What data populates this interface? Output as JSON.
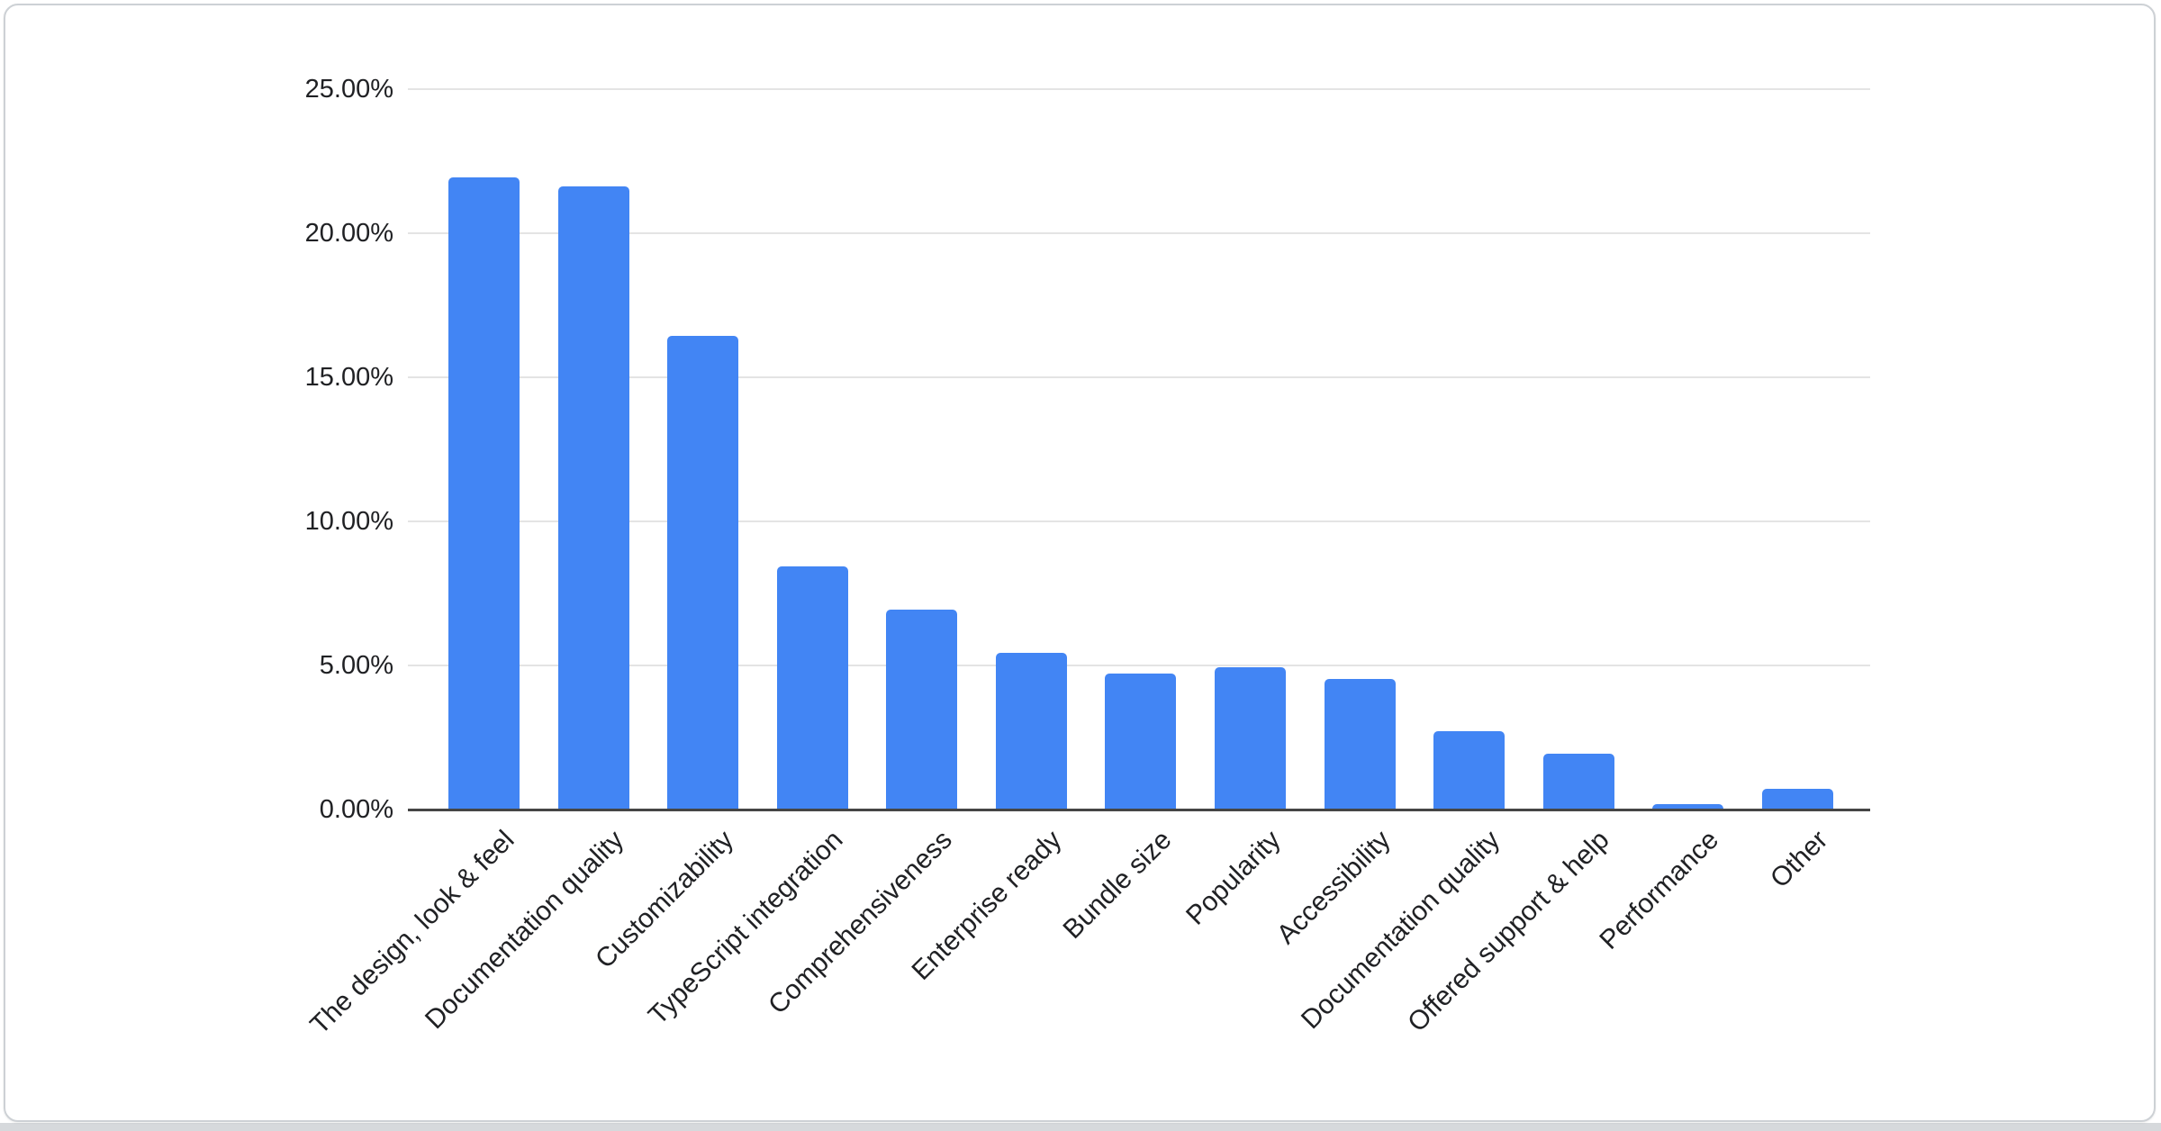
{
  "card": {
    "background": "#ffffff",
    "border_color": "#cdd1d5",
    "outside_strip_color": "#d6d9dc"
  },
  "chart_data": {
    "type": "bar",
    "title": "",
    "xlabel": "",
    "ylabel": "",
    "categories": [
      "The design, look & feel",
      "Documentation quality",
      "Customizability",
      "TypeScript integration",
      "Comprehensiveness",
      "Enterprise ready",
      "Bundle size",
      "Popularity",
      "Accessibility",
      "Documentation quality",
      "Offered support & help",
      "Performance",
      "Other"
    ],
    "values": [
      21.9,
      21.6,
      16.4,
      8.4,
      6.9,
      5.4,
      4.7,
      4.9,
      4.5,
      2.7,
      1.9,
      0.15,
      0.7
    ],
    "value_unit": "percent",
    "ylim": [
      0,
      25
    ],
    "ytick_step": 5,
    "ytick_labels": [
      "0.00%",
      "5.00%",
      "10.00%",
      "15.00%",
      "20.00%",
      "25.00%"
    ],
    "grid": true,
    "legend_position": "none",
    "bar_color": "#4285f4",
    "gridline_color": "#e4e4e4",
    "axis_color": "#454545",
    "tick_label_color": "#202124"
  }
}
